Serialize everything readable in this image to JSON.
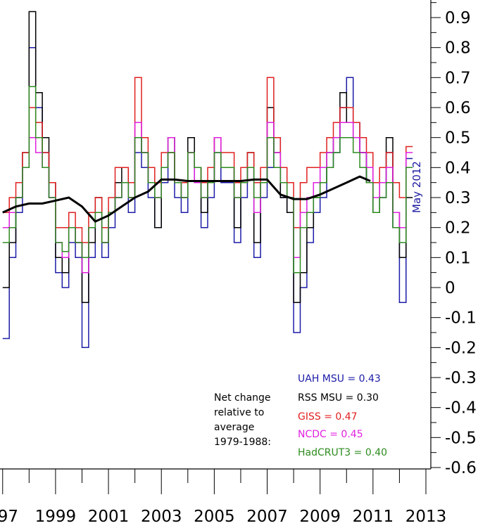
{
  "chart_data": {
    "type": "line",
    "xlim": [
      1996.9,
      2013.0
    ],
    "ylim": [
      -0.6,
      0.95
    ],
    "x_ticks": [
      "97",
      "1999",
      "2001",
      "2003",
      "2005",
      "2007",
      "2009",
      "2011",
      "2013"
    ],
    "x_tick_values": [
      1997,
      1999,
      2001,
      2003,
      2005,
      2007,
      2009,
      2011,
      2013
    ],
    "y_ticks": [
      "0.9",
      "0.8",
      "0.7",
      "0.6",
      "0.5",
      "0.4",
      "0.3",
      "0.2",
      "0.1",
      "0",
      "-0.1",
      "-0.2",
      "-0.3",
      "-0.4",
      "-0.5",
      "-0.6"
    ],
    "y_tick_values": [
      0.9,
      0.8,
      0.7,
      0.6,
      0.5,
      0.4,
      0.3,
      0.2,
      0.1,
      0,
      -0.1,
      -0.2,
      -0.3,
      -0.4,
      -0.5,
      -0.6
    ],
    "period_label": "May 2012",
    "net_change_label": [
      "Net change",
      "relative to",
      "average",
      "1979-1988:"
    ],
    "legend_position": "bottom-right",
    "series": [
      {
        "name": "UAH MSU = 0.43",
        "color": "#1c1ca8",
        "x": [
          1997.0,
          1997.25,
          1997.5,
          1997.75,
          1998.0,
          1998.25,
          1998.5,
          1998.75,
          1999.0,
          1999.25,
          1999.5,
          1999.75,
          2000.0,
          2000.25,
          2000.5,
          2000.75,
          2001.0,
          2001.25,
          2001.5,
          2001.75,
          2002.0,
          2002.25,
          2002.5,
          2002.75,
          2003.0,
          2003.25,
          2003.5,
          2003.75,
          2004.0,
          2004.25,
          2004.5,
          2004.75,
          2005.0,
          2005.25,
          2005.5,
          2005.75,
          2006.0,
          2006.25,
          2006.5,
          2006.75,
          2007.0,
          2007.25,
          2007.5,
          2007.75,
          2008.0,
          2008.25,
          2008.5,
          2008.75,
          2009.0,
          2009.25,
          2009.5,
          2009.75,
          2010.0,
          2010.25,
          2010.5,
          2010.75,
          2011.0,
          2011.25,
          2011.5,
          2011.75,
          2012.0,
          2012.25
        ],
        "values": [
          -0.17,
          0.1,
          0.25,
          0.4,
          0.8,
          0.6,
          0.45,
          0.3,
          0.05,
          0.0,
          0.15,
          0.1,
          -0.2,
          0.1,
          0.25,
          0.1,
          0.2,
          0.3,
          0.35,
          0.25,
          0.45,
          0.4,
          0.3,
          0.2,
          0.35,
          0.45,
          0.3,
          0.25,
          0.45,
          0.35,
          0.2,
          0.3,
          0.45,
          0.35,
          0.35,
          0.15,
          0.3,
          0.4,
          0.1,
          0.3,
          0.4,
          0.5,
          0.3,
          0.25,
          -0.15,
          0.0,
          0.15,
          0.25,
          0.3,
          0.4,
          0.45,
          0.6,
          0.7,
          0.55,
          0.45,
          0.35,
          0.25,
          0.3,
          0.45,
          0.2,
          -0.05,
          0.43
        ]
      },
      {
        "name": "RSS MSU = 0.30",
        "color": "#000000",
        "x": [
          1997.0,
          1997.25,
          1997.5,
          1997.75,
          1998.0,
          1998.25,
          1998.5,
          1998.75,
          1999.0,
          1999.25,
          1999.5,
          1999.75,
          2000.0,
          2000.25,
          2000.5,
          2000.75,
          2001.0,
          2001.25,
          2001.5,
          2001.75,
          2002.0,
          2002.25,
          2002.5,
          2002.75,
          2003.0,
          2003.25,
          2003.5,
          2003.75,
          2004.0,
          2004.25,
          2004.5,
          2004.75,
          2005.0,
          2005.25,
          2005.5,
          2005.75,
          2006.0,
          2006.25,
          2006.5,
          2006.75,
          2007.0,
          2007.25,
          2007.5,
          2007.75,
          2008.0,
          2008.25,
          2008.5,
          2008.75,
          2009.0,
          2009.25,
          2009.5,
          2009.75,
          2010.0,
          2010.25,
          2010.5,
          2010.75,
          2011.0,
          2011.25,
          2011.5,
          2011.75,
          2012.0,
          2012.25
        ],
        "values": [
          0.0,
          0.15,
          0.3,
          0.45,
          0.92,
          0.65,
          0.5,
          0.35,
          0.1,
          0.05,
          0.2,
          0.15,
          -0.05,
          0.15,
          0.3,
          0.15,
          0.25,
          0.35,
          0.4,
          0.3,
          0.5,
          0.45,
          0.35,
          0.2,
          0.4,
          0.5,
          0.35,
          0.3,
          0.5,
          0.4,
          0.25,
          0.35,
          0.5,
          0.4,
          0.4,
          0.2,
          0.35,
          0.45,
          0.15,
          0.35,
          0.6,
          0.45,
          0.3,
          0.25,
          -0.05,
          0.05,
          0.2,
          0.3,
          0.35,
          0.45,
          0.5,
          0.65,
          0.55,
          0.5,
          0.45,
          0.35,
          0.25,
          0.35,
          0.5,
          0.25,
          0.1,
          0.3
        ]
      },
      {
        "name": "GISS = 0.47",
        "color": "#e02020",
        "x": [
          1997.0,
          1997.25,
          1997.5,
          1997.75,
          1998.0,
          1998.25,
          1998.5,
          1998.75,
          1999.0,
          1999.25,
          1999.5,
          1999.75,
          2000.0,
          2000.25,
          2000.5,
          2000.75,
          2001.0,
          2001.25,
          2001.5,
          2001.75,
          2002.0,
          2002.25,
          2002.5,
          2002.75,
          2003.0,
          2003.25,
          2003.5,
          2003.75,
          2004.0,
          2004.25,
          2004.5,
          2004.75,
          2005.0,
          2005.25,
          2005.5,
          2005.75,
          2006.0,
          2006.25,
          2006.5,
          2006.75,
          2007.0,
          2007.25,
          2007.5,
          2007.75,
          2008.0,
          2008.25,
          2008.5,
          2008.75,
          2009.0,
          2009.25,
          2009.5,
          2009.75,
          2010.0,
          2010.25,
          2010.5,
          2010.75,
          2011.0,
          2011.25,
          2011.5,
          2011.75,
          2012.0,
          2012.25
        ],
        "values": [
          0.25,
          0.3,
          0.35,
          0.45,
          0.6,
          0.55,
          0.45,
          0.35,
          0.2,
          0.2,
          0.25,
          0.2,
          0.15,
          0.25,
          0.3,
          0.2,
          0.3,
          0.4,
          0.4,
          0.35,
          0.7,
          0.5,
          0.4,
          0.35,
          0.45,
          0.45,
          0.35,
          0.35,
          0.45,
          0.4,
          0.35,
          0.4,
          0.5,
          0.45,
          0.45,
          0.35,
          0.4,
          0.45,
          0.35,
          0.4,
          0.7,
          0.5,
          0.4,
          0.35,
          0.2,
          0.35,
          0.4,
          0.4,
          0.45,
          0.5,
          0.55,
          0.6,
          0.6,
          0.55,
          0.5,
          0.45,
          0.35,
          0.4,
          0.45,
          0.35,
          0.3,
          0.47
        ]
      },
      {
        "name": "NCDC = 0.45",
        "color": "#e020e0",
        "x": [
          1997.0,
          1997.25,
          1997.5,
          1997.75,
          1998.0,
          1998.25,
          1998.5,
          1998.75,
          1999.0,
          1999.25,
          1999.5,
          1999.75,
          2000.0,
          2000.25,
          2000.5,
          2000.75,
          2001.0,
          2001.25,
          2001.5,
          2001.75,
          2002.0,
          2002.25,
          2002.5,
          2002.75,
          2003.0,
          2003.25,
          2003.5,
          2003.75,
          2004.0,
          2004.25,
          2004.5,
          2004.75,
          2005.0,
          2005.25,
          2005.5,
          2005.75,
          2006.0,
          2006.25,
          2006.5,
          2006.75,
          2007.0,
          2007.25,
          2007.5,
          2007.75,
          2008.0,
          2008.25,
          2008.5,
          2008.75,
          2009.0,
          2009.25,
          2009.5,
          2009.75,
          2010.0,
          2010.25,
          2010.5,
          2010.75,
          2011.0,
          2011.25,
          2011.5,
          2011.75,
          2012.0,
          2012.25
        ],
        "values": [
          0.2,
          0.25,
          0.3,
          0.4,
          0.5,
          0.45,
          0.4,
          0.3,
          0.15,
          0.1,
          0.2,
          0.15,
          0.05,
          0.2,
          0.25,
          0.15,
          0.25,
          0.3,
          0.35,
          0.3,
          0.55,
          0.45,
          0.35,
          0.3,
          0.4,
          0.5,
          0.35,
          0.3,
          0.45,
          0.35,
          0.3,
          0.35,
          0.5,
          0.4,
          0.4,
          0.3,
          0.35,
          0.4,
          0.25,
          0.35,
          0.55,
          0.45,
          0.35,
          0.3,
          0.1,
          0.25,
          0.3,
          0.35,
          0.4,
          0.45,
          0.5,
          0.55,
          0.55,
          0.5,
          0.45,
          0.4,
          0.3,
          0.35,
          0.4,
          0.25,
          0.2,
          0.45
        ]
      },
      {
        "name": "HadCRUT3 = 0.40",
        "color": "#2e8b20",
        "x": [
          1997.0,
          1997.25,
          1997.5,
          1997.75,
          1998.0,
          1998.25,
          1998.5,
          1998.75,
          1999.0,
          1999.25,
          1999.5,
          1999.75,
          2000.0,
          2000.25,
          2000.5,
          2000.75,
          2001.0,
          2001.25,
          2001.5,
          2001.75,
          2002.0,
          2002.25,
          2002.5,
          2002.75,
          2003.0,
          2003.25,
          2003.5,
          2003.75,
          2004.0,
          2004.25,
          2004.5,
          2004.75,
          2005.0,
          2005.25,
          2005.5,
          2005.75,
          2006.0,
          2006.25,
          2006.5,
          2006.75,
          2007.0,
          2007.25,
          2007.5,
          2007.75,
          2008.0,
          2008.25,
          2008.5,
          2008.75,
          2009.0,
          2009.25,
          2009.5,
          2009.75,
          2010.0,
          2010.25,
          2010.5,
          2010.75,
          2011.0,
          2011.25,
          2011.5,
          2011.75,
          2012.0,
          2012.25
        ],
        "values": [
          0.15,
          0.2,
          0.3,
          0.4,
          0.67,
          0.5,
          0.4,
          0.3,
          0.15,
          0.12,
          0.2,
          0.15,
          0.1,
          0.2,
          0.25,
          0.15,
          0.25,
          0.3,
          0.35,
          0.3,
          0.5,
          0.45,
          0.35,
          0.3,
          0.4,
          0.45,
          0.35,
          0.3,
          0.45,
          0.4,
          0.3,
          0.35,
          0.45,
          0.4,
          0.4,
          0.3,
          0.35,
          0.4,
          0.3,
          0.35,
          0.5,
          0.4,
          0.35,
          0.3,
          0.05,
          0.2,
          0.25,
          0.3,
          0.35,
          0.4,
          0.45,
          0.5,
          0.5,
          0.45,
          0.4,
          0.35,
          0.25,
          0.3,
          0.35,
          0.2,
          0.15,
          0.4
        ]
      },
      {
        "name": "",
        "color": "#000000",
        "thick": true,
        "x": [
          1997.0,
          1997.5,
          1998.0,
          1998.5,
          1999.0,
          1999.5,
          2000.0,
          2000.5,
          2001.0,
          2001.5,
          2002.0,
          2002.5,
          2003.0,
          2003.5,
          2004.0,
          2004.5,
          2005.0,
          2005.5,
          2006.0,
          2006.5,
          2007.0,
          2007.5,
          2008.0,
          2008.5,
          2009.0,
          2009.5,
          2010.0,
          2010.5,
          2010.9
        ],
        "values": [
          0.25,
          0.27,
          0.28,
          0.28,
          0.29,
          0.3,
          0.27,
          0.22,
          0.24,
          0.27,
          0.3,
          0.32,
          0.36,
          0.36,
          0.355,
          0.355,
          0.355,
          0.355,
          0.355,
          0.36,
          0.36,
          0.31,
          0.295,
          0.295,
          0.31,
          0.33,
          0.35,
          0.37,
          0.355
        ]
      }
    ]
  }
}
